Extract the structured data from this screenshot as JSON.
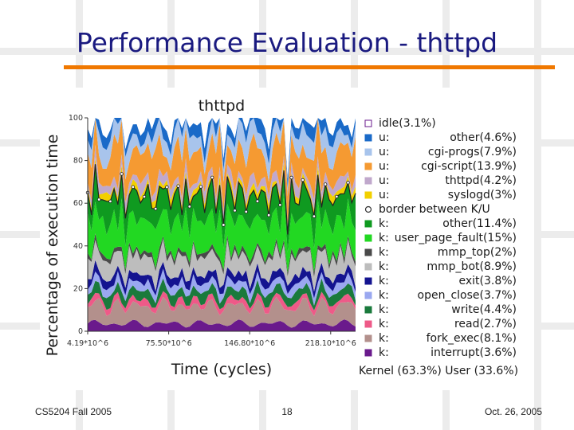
{
  "slide": {
    "title": "Performance Evaluation - thttpd",
    "footer_left": "CS5204 Fall 2005",
    "footer_center": "18",
    "footer_right": "Oct. 26, 2005"
  },
  "colors": {
    "title": "#1a1a80",
    "rule": "#f07800",
    "grid": "#e9e9e9"
  },
  "chart_data": {
    "type": "area",
    "title": "thttpd",
    "xlabel": "Time (cycles)",
    "ylabel": "Percentage of execution time",
    "xlim": [
      4.19,
      240
    ],
    "ylim": [
      0,
      100
    ],
    "xtick_labels": [
      {
        "x": 4.19,
        "label": "4.19*10^6"
      },
      {
        "x": 75.5,
        "label": "75.50*10^6"
      },
      {
        "x": 146.8,
        "label": "146.80*10^6"
      },
      {
        "x": 218.1,
        "label": "218.10*10^6"
      }
    ],
    "yticks": [
      0,
      20,
      40,
      60,
      80,
      100
    ],
    "summary": "Kernel (63.3%) User (33.6%)",
    "series": [
      {
        "prefix": "k:",
        "name": "interrupt(3.6%)",
        "color": "#6a1a8c",
        "marker": "square",
        "share": 3.6
      },
      {
        "prefix": "k:",
        "name": "fork_exec(8.1%)",
        "color": "#b3908c",
        "marker": "square",
        "share": 8.1
      },
      {
        "prefix": "k:",
        "name": "read(2.7%)",
        "color": "#ee5a88",
        "marker": "square",
        "share": 2.7
      },
      {
        "prefix": "k:",
        "name": "write(4.4%)",
        "color": "#1a7a3c",
        "marker": "square",
        "share": 4.4
      },
      {
        "prefix": "k:",
        "name": "open_close(3.7%)",
        "color": "#9aa8f0",
        "marker": "square",
        "share": 3.7
      },
      {
        "prefix": "k:",
        "name": "exit(3.8%)",
        "color": "#141490",
        "marker": "square",
        "share": 3.8
      },
      {
        "prefix": "k:",
        "name": "mmp_bot(8.9%)",
        "color": "#bdbdbd",
        "marker": "square",
        "share": 8.9
      },
      {
        "prefix": "k:",
        "name": "mmp_top(2%)",
        "color": "#4a4a4a",
        "marker": "square",
        "share": 2.0
      },
      {
        "prefix": "k:",
        "name": "user_page_fault(15%)",
        "color": "#22d822",
        "marker": "square",
        "share": 15.0
      },
      {
        "prefix": "k:",
        "name": "other(11.4%)",
        "color": "#0f9a20",
        "marker": "square",
        "share": 11.4
      },
      {
        "prefix": "",
        "name": "border between K/U",
        "color": "#222222",
        "marker": "circle",
        "share": 0
      },
      {
        "prefix": "u:",
        "name": "syslogd(3%)",
        "color": "#f2d000",
        "marker": "square",
        "share": 3.0
      },
      {
        "prefix": "u:",
        "name": "thttpd(4.2%)",
        "color": "#c0a8cc",
        "marker": "square",
        "share": 4.2
      },
      {
        "prefix": "u:",
        "name": "cgi-script(13.9%)",
        "color": "#f59a32",
        "marker": "square",
        "share": 13.9
      },
      {
        "prefix": "u:",
        "name": "cgi-progs(7.9%)",
        "color": "#a8c4ec",
        "marker": "square",
        "share": 7.9
      },
      {
        "prefix": "u:",
        "name": "other(4.6%)",
        "color": "#1a6ac8",
        "marker": "square",
        "share": 4.6
      },
      {
        "prefix": "",
        "name": "idle(3.1%)",
        "color": "#ffffff",
        "marker": "square",
        "share": 3.1
      }
    ]
  }
}
